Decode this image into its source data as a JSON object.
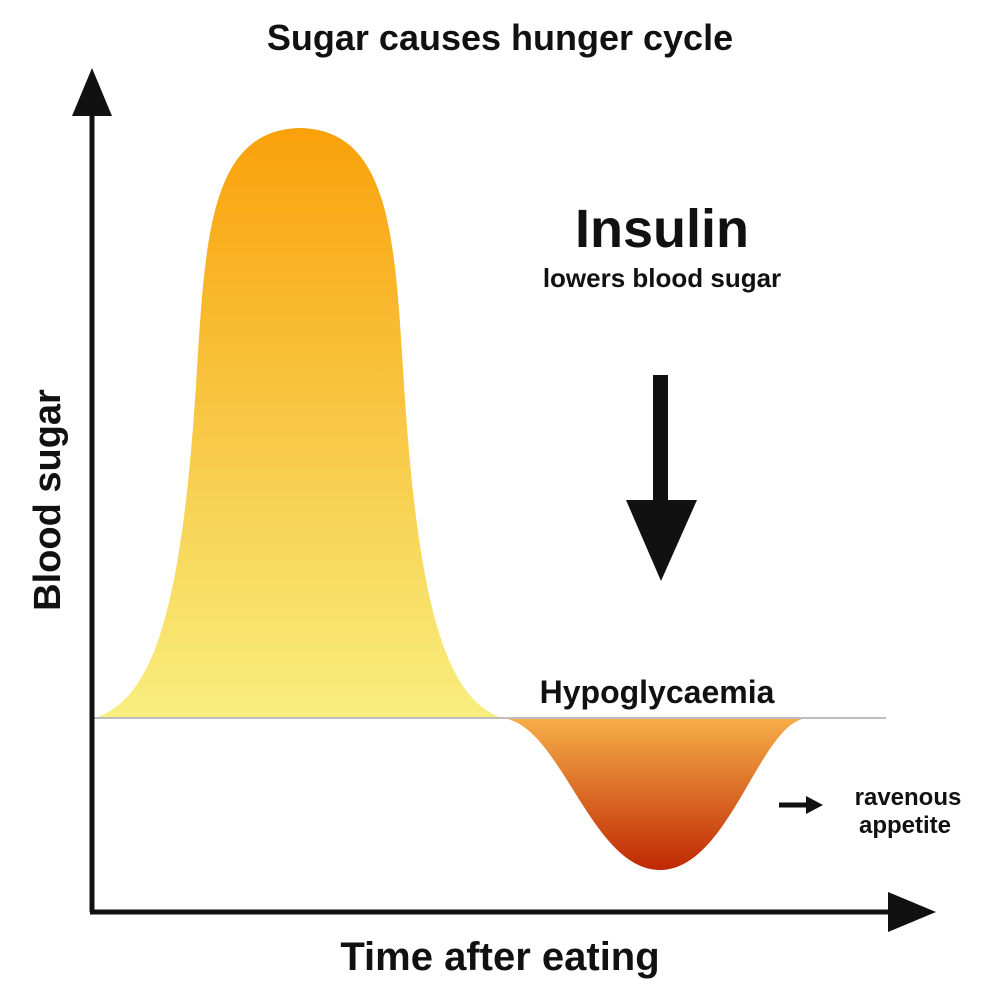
{
  "title": "Sugar causes hunger cycle",
  "axes": {
    "y_label": "Blood sugar",
    "x_label": "Time after eating"
  },
  "annotations": {
    "insulin_heading": "Insulin",
    "insulin_subtext": "lowers blood sugar",
    "hypoglycaemia_label": "Hypoglycaemia",
    "appetite_line1": "ravenous",
    "appetite_line2": "appetite"
  },
  "colors": {
    "peak_top": "#f9a10a",
    "peak_bottom": "#f8ee7e",
    "dip_top": "#f6ae48",
    "dip_bottom": "#bf2804",
    "baseline": "#bdbdbd",
    "ink": "#111111"
  }
}
